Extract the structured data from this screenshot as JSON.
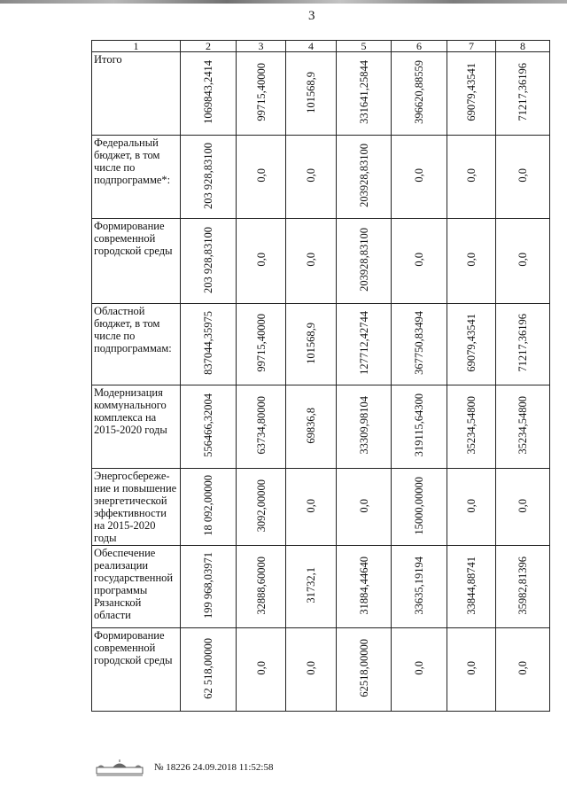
{
  "page_number": "3",
  "table": {
    "headers": [
      "1",
      "2",
      "3",
      "4",
      "5",
      "6",
      "7",
      "8"
    ],
    "rows": [
      {
        "label": "Итого",
        "values": [
          "1069843,2414",
          "99715,40000",
          "101568,9",
          "331641,25844",
          "396620,88559",
          "69079,43541",
          "71217,36196"
        ]
      },
      {
        "label": "Федеральный бюджет, в том числе по подпрограмме*:",
        "values": [
          "203 928,83100",
          "0,0",
          "0,0",
          "203928,83100",
          "0,0",
          "0,0",
          "0,0"
        ]
      },
      {
        "label": "Формирование современной городской среды",
        "values": [
          "203 928,83100",
          "0,0",
          "0,0",
          "203928,83100",
          "0,0",
          "0,0",
          "0,0"
        ]
      },
      {
        "label": "Областной бюджет, в том числе по подпрограммам:",
        "values": [
          "837044,35975",
          "99715,40000",
          "101568,9",
          "127712,42744",
          "367750,83494",
          "69079,43541",
          "71217,36196"
        ]
      },
      {
        "label": "Модернизация коммунального комплекса на 2015-2020 годы",
        "values": [
          "556466,32004",
          "63734,80000",
          "69836,8",
          "33309,98104",
          "319115,64300",
          "35234,54800",
          "35234,54800"
        ]
      },
      {
        "label": "Энергосбереже-ние и повышение энергетической эффективности на 2015-2020 годы",
        "values": [
          "18 092,00000",
          "3092,00000",
          "0,0",
          "0,0",
          "15000,00000",
          "0,0",
          "0,0"
        ]
      },
      {
        "label": "Обеспечение реализации государственной программы Рязанской области",
        "values": [
          "199 968,03971",
          "32888,60000",
          "31732,1",
          "31884,44640",
          "33635,19194",
          "33844,88741",
          "35982,81396"
        ]
      },
      {
        "label": "Формирование современной городской среды",
        "values": [
          "62 518,00000",
          "0,0",
          "0,0",
          "62518,00000",
          "0,0",
          "0,0",
          "0,0"
        ]
      }
    ]
  },
  "footer": {
    "logo_icon": "building-dome-logo",
    "stamp": "№ 18226  24.09.2018 11:52:58"
  }
}
